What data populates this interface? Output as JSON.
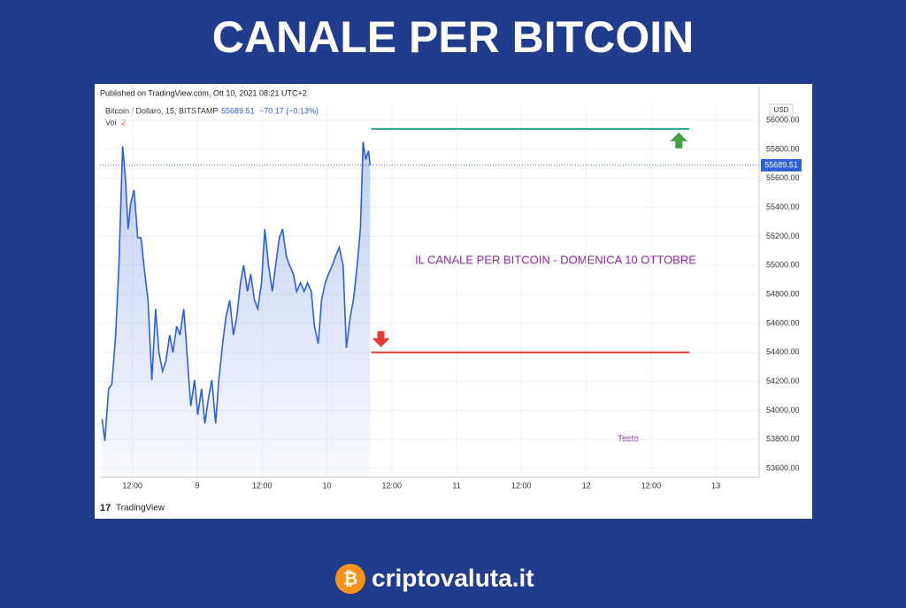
{
  "chart_data": {
    "type": "line",
    "title": "CANALE PER BITCOIN",
    "published": "Published on TradingView.com, Ott 10, 2021 08:21 UTC+2",
    "symbol": "Bitcoin / Dollaro, 15, BITSTAMP",
    "last_price": 55689.51,
    "last_price_label": "55689.51",
    "change_label": "−70.17 (−0.13%)",
    "volume_label": "Vol",
    "volume_length_label": "2",
    "currency": "USD",
    "annotation": "IL CANALE PER BITCOIN - DOMENICA 10 OTTOBRE",
    "note": "Testo",
    "brand": "TradingView",
    "footer": "criptovaluta.it",
    "grid": true,
    "xlim": [
      6,
      128
    ],
    "xticks": [
      {
        "value": 12,
        "label": "12:00"
      },
      {
        "value": 24,
        "label": "9"
      },
      {
        "value": 36,
        "label": "12:00"
      },
      {
        "value": 48,
        "label": "10"
      },
      {
        "value": 60,
        "label": "12:00"
      },
      {
        "value": 72,
        "label": "11"
      },
      {
        "value": 84,
        "label": "12:00"
      },
      {
        "value": 96,
        "label": "12"
      },
      {
        "value": 108,
        "label": "12:00"
      },
      {
        "value": 120,
        "label": "13"
      }
    ],
    "ylim": [
      53540,
      56110
    ],
    "yticks": [
      {
        "value": 53600,
        "label": "53600.00"
      },
      {
        "value": 53800,
        "label": "53800.00"
      },
      {
        "value": 54000,
        "label": "54000.00"
      },
      {
        "value": 54200,
        "label": "54200.00"
      },
      {
        "value": 54400,
        "label": "54400.00"
      },
      {
        "value": 54600,
        "label": "54600.00"
      },
      {
        "value": 54800,
        "label": "54800.00"
      },
      {
        "value": 55000,
        "label": "55000.00"
      },
      {
        "value": 55200,
        "label": "55200.00"
      },
      {
        "value": 55400,
        "label": "55400.00"
      },
      {
        "value": 55600,
        "label": "55600.00"
      },
      {
        "value": 55800,
        "label": "55800.00"
      },
      {
        "value": 56000,
        "label": "56000.00"
      }
    ],
    "x": [
      6.4,
      6.9,
      7.6,
      8.2,
      8.9,
      9.5,
      10.2,
      10.7,
      11.2,
      11.7,
      12.3,
      13.0,
      13.6,
      14.3,
      14.9,
      15.6,
      16.3,
      16.9,
      17.6,
      18.2,
      18.9,
      19.5,
      20.2,
      20.8,
      21.5,
      22.1,
      22.8,
      23.5,
      24.1,
      24.8,
      25.4,
      26.1,
      26.7,
      27.4,
      28.0,
      28.7,
      29.3,
      30.0,
      30.7,
      31.3,
      32.0,
      32.6,
      33.3,
      33.9,
      34.6,
      35.2,
      35.9,
      36.5,
      37.2,
      37.9,
      38.5,
      39.2,
      39.8,
      40.5,
      41.1,
      41.8,
      42.4,
      43.1,
      43.8,
      44.4,
      45.1,
      45.7,
      46.4,
      47.0,
      47.7,
      48.3,
      49.0,
      49.6,
      50.3,
      51.0,
      51.6,
      52.3,
      52.9,
      53.6,
      54.2,
      54.7,
      55.2,
      55.7,
      56.0
    ],
    "series": [
      {
        "name": "Bitcoin",
        "color": "#2f5fd8",
        "values": [
          53940,
          53790,
          54150,
          54180,
          54520,
          55000,
          55820,
          55610,
          55250,
          55430,
          55520,
          55190,
          55190,
          54940,
          54760,
          54210,
          54700,
          54400,
          54270,
          54340,
          54520,
          54400,
          54580,
          54520,
          54700,
          54400,
          54030,
          54210,
          53970,
          54150,
          53910,
          54090,
          54210,
          53910,
          54210,
          54460,
          54640,
          54760,
          54520,
          54640,
          54880,
          55000,
          54820,
          54940,
          54760,
          54700,
          54880,
          55250,
          55000,
          54820,
          55000,
          55190,
          55250,
          55060,
          55000,
          54940,
          54820,
          54880,
          54820,
          54880,
          54820,
          54580,
          54460,
          54760,
          54880,
          54940,
          55000,
          55060,
          55125,
          55000,
          54430,
          54640,
          54760,
          55000,
          55250,
          55850,
          55730,
          55790,
          55689.51
        ]
      }
    ],
    "levels": [
      {
        "color": "#26a69a",
        "value": 55940,
        "x": [
          56.2,
          115.1
        ]
      },
      {
        "color": "#e53935",
        "value": 54400,
        "x": [
          56.2,
          115.1
        ]
      }
    ]
  }
}
